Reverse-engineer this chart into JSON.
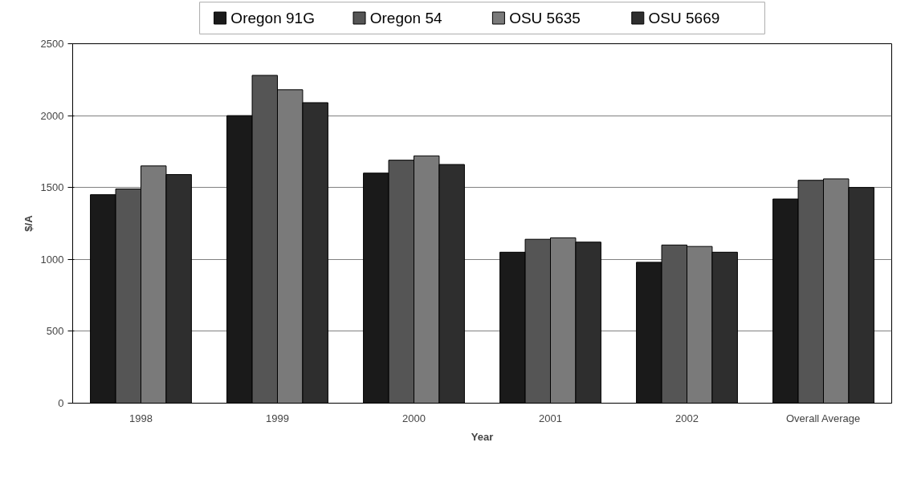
{
  "chart_data": {
    "type": "bar",
    "xlabel": "Year",
    "ylabel": "$/A",
    "categories": [
      "1998",
      "1999",
      "2000",
      "2001",
      "2002",
      "Overall Average"
    ],
    "series": [
      {
        "name": "Oregon 91G",
        "color": "#1a1a1a",
        "values": [
          1450,
          2000,
          1600,
          1050,
          980,
          1420
        ]
      },
      {
        "name": "Oregon 54",
        "color": "#555555",
        "values": [
          1490,
          2280,
          1690,
          1140,
          1100,
          1550
        ]
      },
      {
        "name": "OSU 5635",
        "color": "#7a7a7a",
        "values": [
          1650,
          2180,
          1720,
          1150,
          1090,
          1560
        ]
      },
      {
        "name": "OSU 5669",
        "color": "#2e2e2e",
        "values": [
          1590,
          2090,
          1660,
          1120,
          1050,
          1500
        ]
      }
    ],
    "ylim": [
      0,
      2500
    ],
    "yticks": [
      0,
      500,
      1000,
      1500,
      2000,
      2500
    ],
    "grid": "y",
    "legend": "top"
  }
}
